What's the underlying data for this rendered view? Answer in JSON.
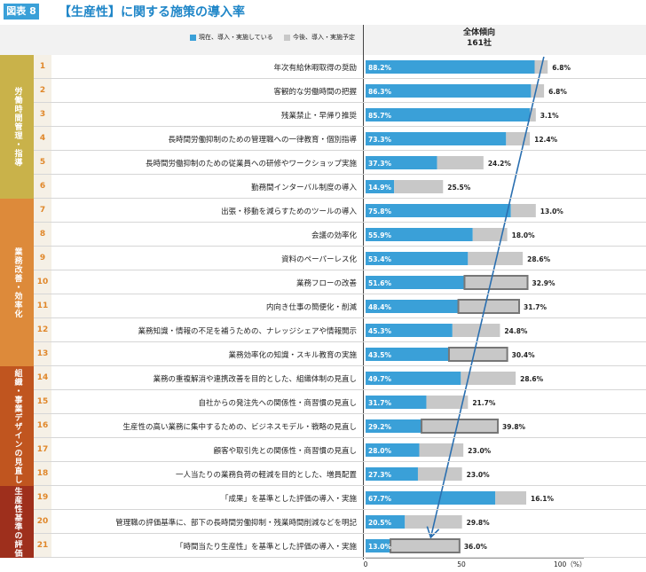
{
  "figure_label": "図表 8",
  "title": "【生産性】に関する施策の導入率",
  "legend": {
    "current": "現在、導入・実施している",
    "planned": "今後、導入・実施予定"
  },
  "column_head": {
    "line1": "全体傾向",
    "line2": "161社"
  },
  "colors": {
    "current": "#3aa0d8",
    "planned": "#c8c8c8",
    "arrow": "#2a6fb0"
  },
  "groups": [
    {
      "label": "労働時間管理・指導",
      "color": "#c9b24a",
      "rows": [
        1,
        6
      ]
    },
    {
      "label": "業務改善・効率化",
      "color": "#dd8a3a",
      "rows": [
        7,
        13
      ]
    },
    {
      "label": "組織・事業デザインの見直し",
      "color": "#c0551f",
      "rows": [
        14,
        18
      ]
    },
    {
      "label": "生産性基準の評価",
      "color": "#9e2f1c",
      "rows": [
        19,
        21
      ]
    }
  ],
  "chart_data": {
    "type": "bar",
    "orientation": "horizontal",
    "stacked": true,
    "xlim": [
      0,
      100
    ],
    "ticks": [
      "0",
      "50",
      "100（%）"
    ],
    "series": [
      {
        "name": "現在、導入・実施している",
        "color": "#3aa0d8"
      },
      {
        "name": "今後、導入・実施予定",
        "color": "#c8c8c8"
      }
    ],
    "rows": [
      {
        "num": "1",
        "label": "年次有給休暇取得の奨励",
        "current": 88.2,
        "planned": 6.8,
        "current_text": "88.2%",
        "planned_text": "6.8%",
        "highlight": false
      },
      {
        "num": "2",
        "label": "客観的な労働時間の把握",
        "current": 86.3,
        "planned": 6.8,
        "current_text": "86.3%",
        "planned_text": "6.8%",
        "highlight": false
      },
      {
        "num": "3",
        "label": "残業禁止・早帰り推奨",
        "current": 85.7,
        "planned": 3.1,
        "current_text": "85.7%",
        "planned_text": "3.1%",
        "highlight": false
      },
      {
        "num": "4",
        "label": "長時間労働抑制のための管理職への一律教育・個別指導",
        "current": 73.3,
        "planned": 12.4,
        "current_text": "73.3%",
        "planned_text": "12.4%",
        "highlight": false
      },
      {
        "num": "5",
        "label": "長時間労働抑制のための従業員への研修やワークショップ実施",
        "current": 37.3,
        "planned": 24.2,
        "current_text": "37.3%",
        "planned_text": "24.2%",
        "highlight": false
      },
      {
        "num": "6",
        "label": "勤務間インターバル制度の導入",
        "current": 14.9,
        "planned": 25.5,
        "current_text": "14.9%",
        "planned_text": "25.5%",
        "highlight": false
      },
      {
        "num": "7",
        "label": "出張・移動を減らすためのツールの導入",
        "current": 75.8,
        "planned": 13.0,
        "current_text": "75.8%",
        "planned_text": "13.0%",
        "highlight": false
      },
      {
        "num": "8",
        "label": "会議の効率化",
        "current": 55.9,
        "planned": 18.0,
        "current_text": "55.9%",
        "planned_text": "18.0%",
        "highlight": false
      },
      {
        "num": "9",
        "label": "資料のペーパーレス化",
        "current": 53.4,
        "planned": 28.6,
        "current_text": "53.4%",
        "planned_text": "28.6%",
        "highlight": false
      },
      {
        "num": "10",
        "label": "業務フローの改善",
        "current": 51.6,
        "planned": 32.9,
        "current_text": "51.6%",
        "planned_text": "32.9%",
        "highlight": true
      },
      {
        "num": "11",
        "label": "内向き仕事の簡便化・削減",
        "current": 48.4,
        "planned": 31.7,
        "current_text": "48.4%",
        "planned_text": "31.7%",
        "highlight": true
      },
      {
        "num": "12",
        "label": "業務知識・情報の不足を補うための、ナレッジシェアや情報開示",
        "current": 45.3,
        "planned": 24.8,
        "current_text": "45.3%",
        "planned_text": "24.8%",
        "highlight": false
      },
      {
        "num": "13",
        "label": "業務効率化の知識・スキル教育の実施",
        "current": 43.5,
        "planned": 30.4,
        "current_text": "43.5%",
        "planned_text": "30.4%",
        "highlight": true
      },
      {
        "num": "14",
        "label": "業務の重複解消や連携改善を目的とした、組織体制の見直し",
        "current": 49.7,
        "planned": 28.6,
        "current_text": "49.7%",
        "planned_text": "28.6%",
        "highlight": false
      },
      {
        "num": "15",
        "label": "自社からの発注先への関係性・商習慣の見直し",
        "current": 31.7,
        "planned": 21.7,
        "current_text": "31.7%",
        "planned_text": "21.7%",
        "highlight": false
      },
      {
        "num": "16",
        "label": "生産性の高い業務に集中するための、ビジネスモデル・戦略の見直し",
        "current": 29.2,
        "planned": 39.8,
        "current_text": "29.2%",
        "planned_text": "39.8%",
        "highlight": true
      },
      {
        "num": "17",
        "label": "顧客や取引先との関係性・商習慣の見直し",
        "current": 28.0,
        "planned": 23.0,
        "current_text": "28.0%",
        "planned_text": "23.0%",
        "highlight": false
      },
      {
        "num": "18",
        "label": "一人当たりの業務負荷の軽減を目的とした、増員配置",
        "current": 27.3,
        "planned": 23.0,
        "current_text": "27.3%",
        "planned_text": "23.0%",
        "highlight": false
      },
      {
        "num": "19",
        "label": "「成果」を基準とした評価の導入・実施",
        "current": 67.7,
        "planned": 16.1,
        "current_text": "67.7%",
        "planned_text": "16.1%",
        "highlight": false
      },
      {
        "num": "20",
        "label": "管理職の評価基準に、部下の長時間労働抑制・残業時間削減などを明記",
        "current": 20.5,
        "planned": 29.8,
        "current_text": "20.5%",
        "planned_text": "29.8%",
        "highlight": false
      },
      {
        "num": "21",
        "label": "「時間当たり生産性」を基準とした評価の導入・実施",
        "current": 13.0,
        "planned": 36.0,
        "current_text": "13.0%",
        "planned_text": "36.0%",
        "highlight": true
      }
    ]
  }
}
